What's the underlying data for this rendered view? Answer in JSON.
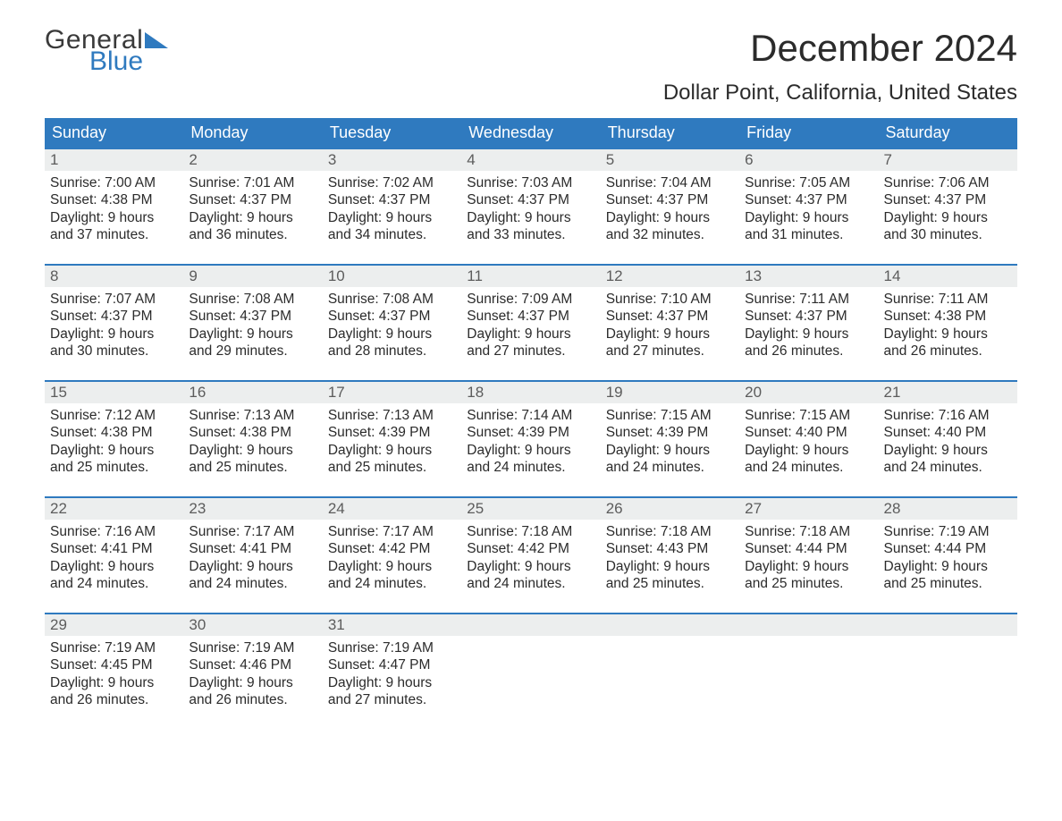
{
  "logo": {
    "word1": "General",
    "word2": "Blue"
  },
  "title": "December 2024",
  "location": "Dollar Point, California, United States",
  "colors": {
    "header_bg": "#2f7abf",
    "header_text": "#ffffff",
    "daynum_bg": "#eceeee",
    "daynum_text": "#5c5c5c",
    "body_text": "#2b2b2b",
    "row_border": "#2f7abf",
    "page_bg": "#ffffff",
    "logo_accent": "#2f7abf"
  },
  "typography": {
    "title_fontsize": 42,
    "location_fontsize": 24,
    "weekday_fontsize": 18,
    "daynum_fontsize": 17,
    "body_fontsize": 15.5,
    "font_family": "Arial"
  },
  "weekdays": [
    "Sunday",
    "Monday",
    "Tuesday",
    "Wednesday",
    "Thursday",
    "Friday",
    "Saturday"
  ],
  "weeks": [
    [
      {
        "day": "1",
        "sunrise": "7:00 AM",
        "sunset": "4:38 PM",
        "daylight": "9 hours and 37 minutes."
      },
      {
        "day": "2",
        "sunrise": "7:01 AM",
        "sunset": "4:37 PM",
        "daylight": "9 hours and 36 minutes."
      },
      {
        "day": "3",
        "sunrise": "7:02 AM",
        "sunset": "4:37 PM",
        "daylight": "9 hours and 34 minutes."
      },
      {
        "day": "4",
        "sunrise": "7:03 AM",
        "sunset": "4:37 PM",
        "daylight": "9 hours and 33 minutes."
      },
      {
        "day": "5",
        "sunrise": "7:04 AM",
        "sunset": "4:37 PM",
        "daylight": "9 hours and 32 minutes."
      },
      {
        "day": "6",
        "sunrise": "7:05 AM",
        "sunset": "4:37 PM",
        "daylight": "9 hours and 31 minutes."
      },
      {
        "day": "7",
        "sunrise": "7:06 AM",
        "sunset": "4:37 PM",
        "daylight": "9 hours and 30 minutes."
      }
    ],
    [
      {
        "day": "8",
        "sunrise": "7:07 AM",
        "sunset": "4:37 PM",
        "daylight": "9 hours and 30 minutes."
      },
      {
        "day": "9",
        "sunrise": "7:08 AM",
        "sunset": "4:37 PM",
        "daylight": "9 hours and 29 minutes."
      },
      {
        "day": "10",
        "sunrise": "7:08 AM",
        "sunset": "4:37 PM",
        "daylight": "9 hours and 28 minutes."
      },
      {
        "day": "11",
        "sunrise": "7:09 AM",
        "sunset": "4:37 PM",
        "daylight": "9 hours and 27 minutes."
      },
      {
        "day": "12",
        "sunrise": "7:10 AM",
        "sunset": "4:37 PM",
        "daylight": "9 hours and 27 minutes."
      },
      {
        "day": "13",
        "sunrise": "7:11 AM",
        "sunset": "4:37 PM",
        "daylight": "9 hours and 26 minutes."
      },
      {
        "day": "14",
        "sunrise": "7:11 AM",
        "sunset": "4:38 PM",
        "daylight": "9 hours and 26 minutes."
      }
    ],
    [
      {
        "day": "15",
        "sunrise": "7:12 AM",
        "sunset": "4:38 PM",
        "daylight": "9 hours and 25 minutes."
      },
      {
        "day": "16",
        "sunrise": "7:13 AM",
        "sunset": "4:38 PM",
        "daylight": "9 hours and 25 minutes."
      },
      {
        "day": "17",
        "sunrise": "7:13 AM",
        "sunset": "4:39 PM",
        "daylight": "9 hours and 25 minutes."
      },
      {
        "day": "18",
        "sunrise": "7:14 AM",
        "sunset": "4:39 PM",
        "daylight": "9 hours and 24 minutes."
      },
      {
        "day": "19",
        "sunrise": "7:15 AM",
        "sunset": "4:39 PM",
        "daylight": "9 hours and 24 minutes."
      },
      {
        "day": "20",
        "sunrise": "7:15 AM",
        "sunset": "4:40 PM",
        "daylight": "9 hours and 24 minutes."
      },
      {
        "day": "21",
        "sunrise": "7:16 AM",
        "sunset": "4:40 PM",
        "daylight": "9 hours and 24 minutes."
      }
    ],
    [
      {
        "day": "22",
        "sunrise": "7:16 AM",
        "sunset": "4:41 PM",
        "daylight": "9 hours and 24 minutes."
      },
      {
        "day": "23",
        "sunrise": "7:17 AM",
        "sunset": "4:41 PM",
        "daylight": "9 hours and 24 minutes."
      },
      {
        "day": "24",
        "sunrise": "7:17 AM",
        "sunset": "4:42 PM",
        "daylight": "9 hours and 24 minutes."
      },
      {
        "day": "25",
        "sunrise": "7:18 AM",
        "sunset": "4:42 PM",
        "daylight": "9 hours and 24 minutes."
      },
      {
        "day": "26",
        "sunrise": "7:18 AM",
        "sunset": "4:43 PM",
        "daylight": "9 hours and 25 minutes."
      },
      {
        "day": "27",
        "sunrise": "7:18 AM",
        "sunset": "4:44 PM",
        "daylight": "9 hours and 25 minutes."
      },
      {
        "day": "28",
        "sunrise": "7:19 AM",
        "sunset": "4:44 PM",
        "daylight": "9 hours and 25 minutes."
      }
    ],
    [
      {
        "day": "29",
        "sunrise": "7:19 AM",
        "sunset": "4:45 PM",
        "daylight": "9 hours and 26 minutes."
      },
      {
        "day": "30",
        "sunrise": "7:19 AM",
        "sunset": "4:46 PM",
        "daylight": "9 hours and 26 minutes."
      },
      {
        "day": "31",
        "sunrise": "7:19 AM",
        "sunset": "4:47 PM",
        "daylight": "9 hours and 27 minutes."
      },
      null,
      null,
      null,
      null
    ]
  ],
  "labels": {
    "sunrise_prefix": "Sunrise: ",
    "sunset_prefix": "Sunset: ",
    "daylight_prefix": "Daylight: "
  }
}
